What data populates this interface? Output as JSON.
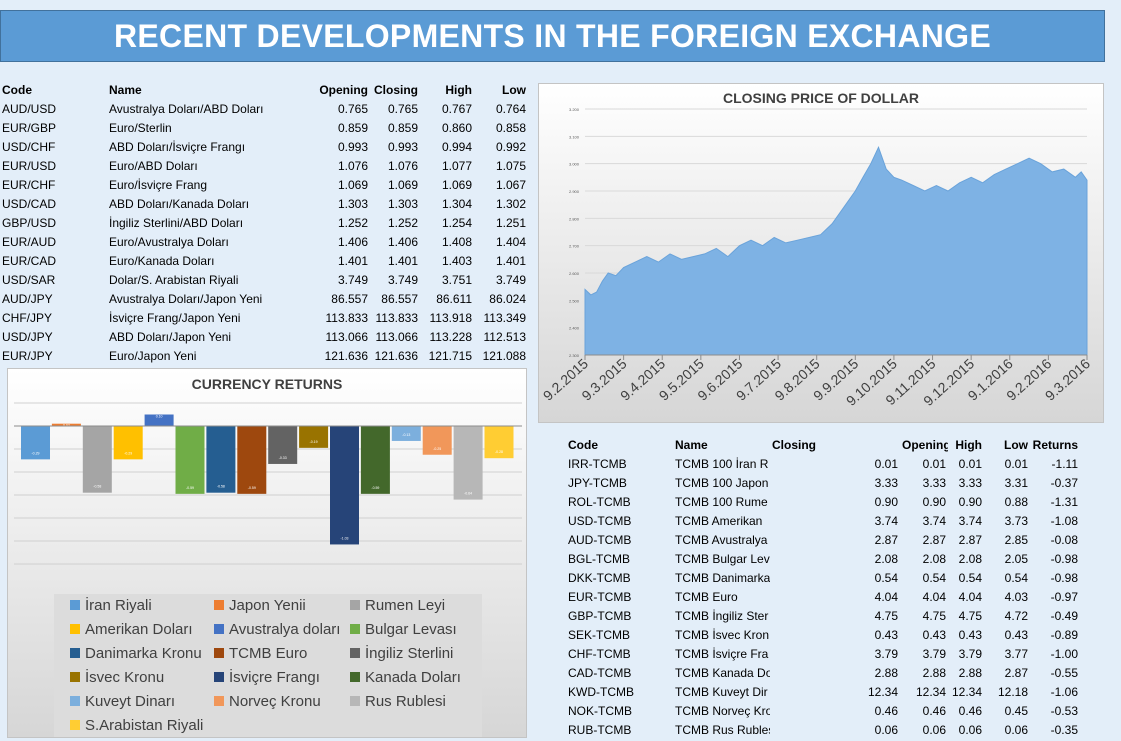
{
  "title": "RECENT DEVELOPMENTS IN THE FOREIGN EXCHANGE",
  "fx_table": {
    "headers": [
      "Code",
      "Name",
      "Opening",
      "Closing",
      "High",
      "Low"
    ],
    "rows": [
      [
        "AUD/USD",
        "Avustralya Doları/ABD Doları",
        "0.765",
        "0.765",
        "0.767",
        "0.764"
      ],
      [
        "EUR/GBP",
        "Euro/Sterlin",
        "0.859",
        "0.859",
        "0.860",
        "0.858"
      ],
      [
        "USD/CHF",
        "ABD Doları/İsviçre Frangı",
        "0.993",
        "0.993",
        "0.994",
        "0.992"
      ],
      [
        "EUR/USD",
        "Euro/ABD Doları",
        "1.076",
        "1.076",
        "1.077",
        "1.075"
      ],
      [
        "EUR/CHF",
        "Euro/İsviçre Frang",
        "1.069",
        "1.069",
        "1.069",
        "1.067"
      ],
      [
        "USD/CAD",
        "ABD Doları/Kanada Doları",
        "1.303",
        "1.303",
        "1.304",
        "1.302"
      ],
      [
        "GBP/USD",
        "İngiliz Sterlini/ABD Doları",
        "1.252",
        "1.252",
        "1.254",
        "1.251"
      ],
      [
        "EUR/AUD",
        "Euro/Avustralya Doları",
        "1.406",
        "1.406",
        "1.408",
        "1.404"
      ],
      [
        "EUR/CAD",
        "Euro/Kanada Doları",
        "1.401",
        "1.401",
        "1.403",
        "1.401"
      ],
      [
        "USD/SAR",
        "Dolar/S. Arabistan Riyali",
        "3.749",
        "3.749",
        "3.751",
        "3.749"
      ],
      [
        "AUD/JPY",
        "Avustralya Doları/Japon Yeni",
        "86.557",
        "86.557",
        "86.611",
        "86.024"
      ],
      [
        "CHF/JPY",
        "İsviçre Frang/Japon Yeni",
        "113.833",
        "113.833",
        "113.918",
        "113.349"
      ],
      [
        "USD/JPY",
        "ABD Doları/Japon Yeni",
        "113.066",
        "113.066",
        "113.228",
        "112.513"
      ],
      [
        "EUR/JPY",
        "Euro/Japon Yeni",
        "121.636",
        "121.636",
        "121.715",
        "121.088"
      ]
    ]
  },
  "tcmb_table": {
    "headers": [
      "Code",
      "Name",
      "Closing",
      "Opening",
      "High",
      "Low",
      "Returns"
    ],
    "rows": [
      [
        "IRR-TCMB",
        "TCMB 100 İran R",
        "0.01",
        "0.01",
        "0.01",
        "0.01",
        "-1.11"
      ],
      [
        "JPY-TCMB",
        "TCMB 100 Japon",
        "3.33",
        "3.33",
        "3.33",
        "3.31",
        "-0.37"
      ],
      [
        "ROL-TCMB",
        "TCMB 100 Rume",
        "0.90",
        "0.90",
        "0.90",
        "0.88",
        "-1.31"
      ],
      [
        "USD-TCMB",
        "TCMB Amerikan",
        "3.74",
        "3.74",
        "3.74",
        "3.73",
        "-1.08"
      ],
      [
        "AUD-TCMB",
        "TCMB Avustralya",
        "2.87",
        "2.87",
        "2.87",
        "2.85",
        "-0.08"
      ],
      [
        "BGL-TCMB",
        "TCMB Bulgar Lev",
        "2.08",
        "2.08",
        "2.08",
        "2.05",
        "-0.98"
      ],
      [
        "DKK-TCMB",
        "TCMB Danimarka",
        "0.54",
        "0.54",
        "0.54",
        "0.54",
        "-0.98"
      ],
      [
        "EUR-TCMB",
        "TCMB Euro",
        "4.04",
        "4.04",
        "4.04",
        "4.03",
        "-0.97"
      ],
      [
        "GBP-TCMB",
        "TCMB İngiliz Ster",
        "4.75",
        "4.75",
        "4.75",
        "4.72",
        "-0.49"
      ],
      [
        "SEK-TCMB",
        "TCMB İsvec Kron",
        "0.43",
        "0.43",
        "0.43",
        "0.43",
        "-0.89"
      ],
      [
        "CHF-TCMB",
        "TCMB İsviçre Fra",
        "3.79",
        "3.79",
        "3.79",
        "3.77",
        "-1.00"
      ],
      [
        "CAD-TCMB",
        "TCMB Kanada Do",
        "2.88",
        "2.88",
        "2.88",
        "2.87",
        "-0.55"
      ],
      [
        "KWD-TCMB",
        "TCMB Kuveyt Dir",
        "12.34",
        "12.34",
        "12.34",
        "12.18",
        "-1.06"
      ],
      [
        "NOK-TCMB",
        "TCMB Norveç Kro",
        "0.46",
        "0.46",
        "0.46",
        "0.45",
        "-0.53"
      ],
      [
        "RUB-TCMB",
        "TCMB Rus Rubles",
        "0.06",
        "0.06",
        "0.06",
        "0.06",
        "-0.35"
      ]
    ]
  },
  "chart_data": [
    {
      "type": "area",
      "title": "CLOSING PRICE OF DOLLAR",
      "x_labels": [
        "9.2.2015",
        "9.3.2015",
        "9.4.2015",
        "9.5.2015",
        "9.6.2015",
        "9.7.2015",
        "9.8.2015",
        "9.9.2015",
        "9.10.2015",
        "9.11.2015",
        "9.12.2015",
        "9.1.2016",
        "9.2.2016",
        "9.3.2016"
      ],
      "y_labels": [
        "2.300",
        "2.400",
        "2.500",
        "2.600",
        "2.700",
        "2.800",
        "2.900",
        "3.000",
        "3.100",
        "3.200"
      ],
      "ylim": [
        2.3,
        3.2
      ],
      "x_index_range": [
        0,
        13
      ],
      "series": [
        {
          "points": [
            [
              0,
              2.54
            ],
            [
              0.15,
              2.52
            ],
            [
              0.3,
              2.53
            ],
            [
              0.45,
              2.57
            ],
            [
              0.6,
              2.6
            ],
            [
              0.8,
              2.59
            ],
            [
              1.0,
              2.62
            ],
            [
              1.3,
              2.64
            ],
            [
              1.6,
              2.66
            ],
            [
              1.9,
              2.64
            ],
            [
              2.2,
              2.67
            ],
            [
              2.5,
              2.65
            ],
            [
              2.8,
              2.66
            ],
            [
              3.1,
              2.67
            ],
            [
              3.4,
              2.69
            ],
            [
              3.7,
              2.66
            ],
            [
              4.0,
              2.7
            ],
            [
              4.3,
              2.72
            ],
            [
              4.6,
              2.7
            ],
            [
              4.9,
              2.73
            ],
            [
              5.2,
              2.71
            ],
            [
              5.5,
              2.72
            ],
            [
              5.8,
              2.73
            ],
            [
              6.1,
              2.74
            ],
            [
              6.4,
              2.78
            ],
            [
              6.7,
              2.84
            ],
            [
              7.0,
              2.9
            ],
            [
              7.2,
              2.95
            ],
            [
              7.4,
              3.0
            ],
            [
              7.6,
              3.06
            ],
            [
              7.8,
              2.98
            ],
            [
              8.0,
              2.95
            ],
            [
              8.2,
              2.94
            ],
            [
              8.5,
              2.92
            ],
            [
              8.8,
              2.9
            ],
            [
              9.1,
              2.92
            ],
            [
              9.4,
              2.9
            ],
            [
              9.7,
              2.93
            ],
            [
              10.0,
              2.95
            ],
            [
              10.3,
              2.93
            ],
            [
              10.6,
              2.96
            ],
            [
              10.9,
              2.98
            ],
            [
              11.2,
              3.0
            ],
            [
              11.5,
              3.02
            ],
            [
              11.8,
              3.0
            ],
            [
              12.1,
              2.97
            ],
            [
              12.4,
              2.98
            ],
            [
              12.7,
              2.95
            ],
            [
              12.85,
              2.97
            ],
            [
              13.0,
              2.94
            ]
          ]
        }
      ]
    },
    {
      "type": "bar",
      "title": "CURRENCY RETURNS",
      "categories": [
        "İran Riyali",
        "Japon Yenii",
        "Rumen Leyi",
        "Amerikan Doları",
        "Avustralya doları",
        "Bulgar Levası",
        "Danimarka Kronu",
        "TCMB Euro",
        "İngiliz Sterlini",
        "İsvec Kronu",
        "İsviçre Frangı",
        "Kanada Doları",
        "Kuveyt Dinarı",
        "Norveç Kronu",
        "Rus Rublesi",
        "S.Arabistan Riyali"
      ],
      "values": [
        -0.29,
        0.02,
        -0.58,
        -0.29,
        0.1,
        -0.59,
        -0.58,
        -0.59,
        -0.33,
        -0.19,
        -1.03,
        -0.59,
        -0.13,
        -0.25,
        -0.64,
        -0.28
      ],
      "colors": [
        "#5b9bd5",
        "#ed7d31",
        "#a5a5a5",
        "#ffc000",
        "#4472c4",
        "#70ad47",
        "#255e91",
        "#9e480e",
        "#636363",
        "#997300",
        "#264478",
        "#43682b",
        "#7cafdd",
        "#f1975a",
        "#b7b7b7",
        "#ffcd33"
      ],
      "ylim": [
        -1.3,
        0.2
      ]
    }
  ]
}
